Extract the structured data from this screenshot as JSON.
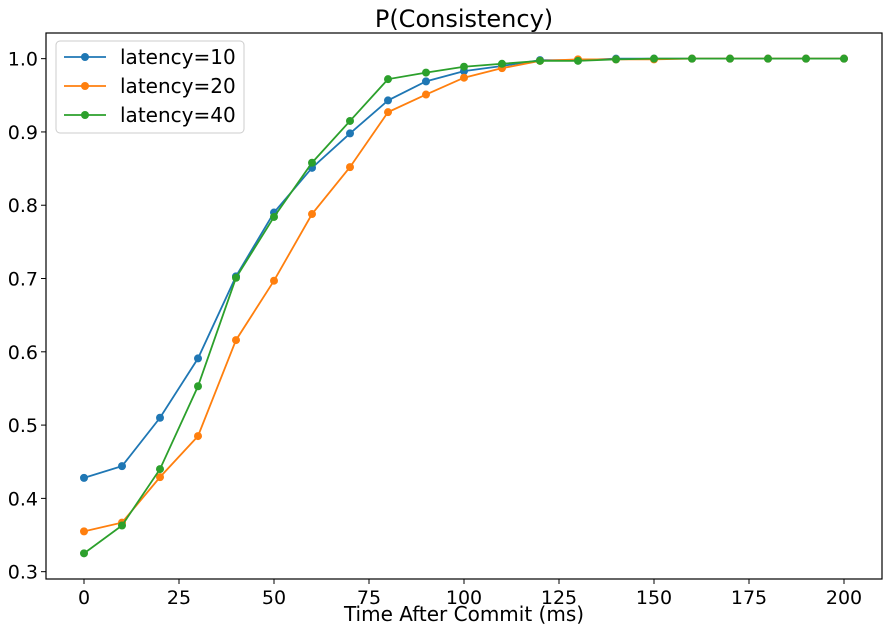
{
  "chart_data": {
    "type": "line",
    "title": "P(Consistency)",
    "xlabel": "Time After Commit (ms)",
    "ylabel": "",
    "xlim": [
      -10,
      210
    ],
    "ylim": [
      0.29,
      1.035
    ],
    "xticks": [
      0,
      25,
      50,
      75,
      100,
      125,
      150,
      175,
      200
    ],
    "yticks": [
      0.3,
      0.4,
      0.5,
      0.6,
      0.7,
      0.8,
      0.9,
      1.0
    ],
    "xtick_labels": [
      "0",
      "25",
      "50",
      "75",
      "100",
      "125",
      "150",
      "175",
      "200"
    ],
    "ytick_labels": [
      "0.3",
      "0.4",
      "0.5",
      "0.6",
      "0.7",
      "0.8",
      "0.9",
      "1.0"
    ],
    "grid": false,
    "legend_position": "top-left",
    "x": [
      0,
      10,
      20,
      30,
      40,
      50,
      60,
      70,
      80,
      90,
      100,
      110,
      120,
      130,
      140,
      150,
      160,
      170,
      180,
      190,
      200
    ],
    "series": [
      {
        "name": "latency=10",
        "color": "#1f77b4",
        "values": [
          0.428,
          0.444,
          0.51,
          0.591,
          0.703,
          0.79,
          0.851,
          0.898,
          0.943,
          0.969,
          0.983,
          0.99,
          0.998,
          0.998,
          1.0,
          1.0,
          1.0,
          1.0,
          1.0,
          1.0,
          1.0
        ]
      },
      {
        "name": "latency=20",
        "color": "#ff7f0e",
        "values": [
          0.355,
          0.367,
          0.429,
          0.485,
          0.616,
          0.697,
          0.788,
          0.852,
          0.927,
          0.951,
          0.974,
          0.987,
          0.997,
          0.999,
          0.999,
          0.999,
          1.0,
          1.0,
          1.0,
          1.0,
          1.0
        ]
      },
      {
        "name": "latency=40",
        "color": "#2ca02c",
        "values": [
          0.325,
          0.363,
          0.44,
          0.553,
          0.701,
          0.784,
          0.858,
          0.915,
          0.972,
          0.981,
          0.989,
          0.993,
          0.997,
          0.997,
          0.999,
          1.0,
          1.0,
          1.0,
          1.0,
          1.0,
          1.0
        ]
      }
    ]
  }
}
